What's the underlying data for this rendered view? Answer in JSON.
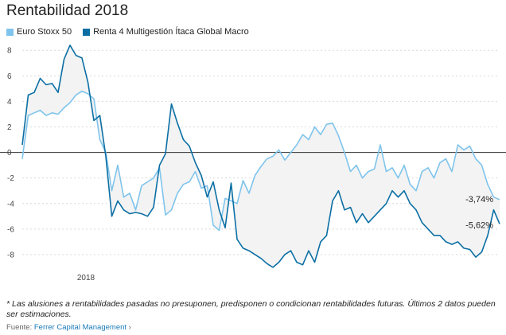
{
  "title": "Rentabilidad 2018",
  "colors": {
    "euro_stoxx": "#7fc4ec",
    "renta4": "#0b6fa4",
    "fill": "#f3f3f3",
    "zero_line": "#333333",
    "grid": "#d9d9d9"
  },
  "footnote": "* Las alusiones a rentabilidades pasadas no presuponen, predisponen o condicionan rentabilidades futuras. Últimos 2 datos pueden ser estimaciones.",
  "source": {
    "prefix": "Fuente:",
    "link_text": "Ferrer Capital Management",
    "arrow": "›"
  },
  "chart_data": {
    "type": "line",
    "title": "Rentabilidad 2018",
    "xlabel": "",
    "ylabel": "",
    "x_tick_labels": [
      "2018"
    ],
    "ylim": [
      -9.5,
      8.7
    ],
    "y_ticks": [
      8,
      6,
      4,
      2,
      0,
      -2,
      -4,
      -6,
      -8
    ],
    "grid": true,
    "legend": "top-left",
    "end_labels": [
      "-3,74%",
      "-5,62%"
    ],
    "series": [
      {
        "name": "Euro Stoxx 50",
        "values": [
          -0.5,
          2.9,
          3.1,
          3.3,
          2.9,
          3.1,
          3.0,
          3.5,
          3.9,
          4.5,
          4.8,
          4.6,
          4.2,
          1.0,
          0.0,
          -3.0,
          -1.0,
          -3.5,
          -3.2,
          -4.5,
          -2.6,
          -2.3,
          -2.0,
          -1.2,
          -4.9,
          -4.5,
          -3.2,
          -2.5,
          -2.3,
          -1.5,
          -2.8,
          -2.6,
          -5.7,
          -6.1,
          -3.6,
          -3.8,
          -4.0,
          -2.2,
          -3.2,
          -1.8,
          -1.1,
          -0.5,
          -0.3,
          0.2,
          -0.6,
          0.0,
          0.6,
          1.4,
          1.0,
          2.0,
          1.4,
          2.2,
          2.3,
          1.3,
          0.0,
          -1.5,
          -1.0,
          -2.0,
          -1.5,
          -1.3,
          0.6,
          -1.5,
          -1.2,
          -2.0,
          -1.0,
          -2.5,
          -3.0,
          -1.5,
          -1.2,
          -2.0,
          -0.8,
          -0.5,
          -1.5,
          0.6,
          0.2,
          0.5,
          -0.5,
          -1.0,
          -2.5,
          -3.5,
          -3.7
        ]
      },
      {
        "name": "Renta 4 Multigestión Ítaca Global Macro",
        "values": [
          0.6,
          4.5,
          4.7,
          5.8,
          5.3,
          5.4,
          4.7,
          7.3,
          8.4,
          7.6,
          7.4,
          5.5,
          2.5,
          2.9,
          -0.3,
          -5.0,
          -3.8,
          -4.5,
          -4.8,
          -4.7,
          -4.8,
          -5.0,
          -4.3,
          -1.0,
          -0.1,
          3.8,
          2.3,
          1.0,
          0.5,
          -0.8,
          -1.8,
          -3.5,
          -2.3,
          -4.5,
          -5.9,
          -2.4,
          -6.8,
          -7.5,
          -7.7,
          -8.0,
          -8.3,
          -8.7,
          -9.0,
          -8.6,
          -8.0,
          -7.7,
          -8.6,
          -8.8,
          -7.7,
          -8.6,
          -7.0,
          -6.5,
          -3.8,
          -3.0,
          -4.5,
          -4.3,
          -5.5,
          -4.8,
          -5.5,
          -5.0,
          -4.5,
          -4.0,
          -3.0,
          -3.5,
          -3.0,
          -4.0,
          -4.5,
          -5.5,
          -6.0,
          -6.5,
          -6.5,
          -7.0,
          -7.2,
          -7.0,
          -7.5,
          -7.6,
          -8.2,
          -7.8,
          -6.5,
          -4.5,
          -5.6
        ]
      }
    ]
  }
}
